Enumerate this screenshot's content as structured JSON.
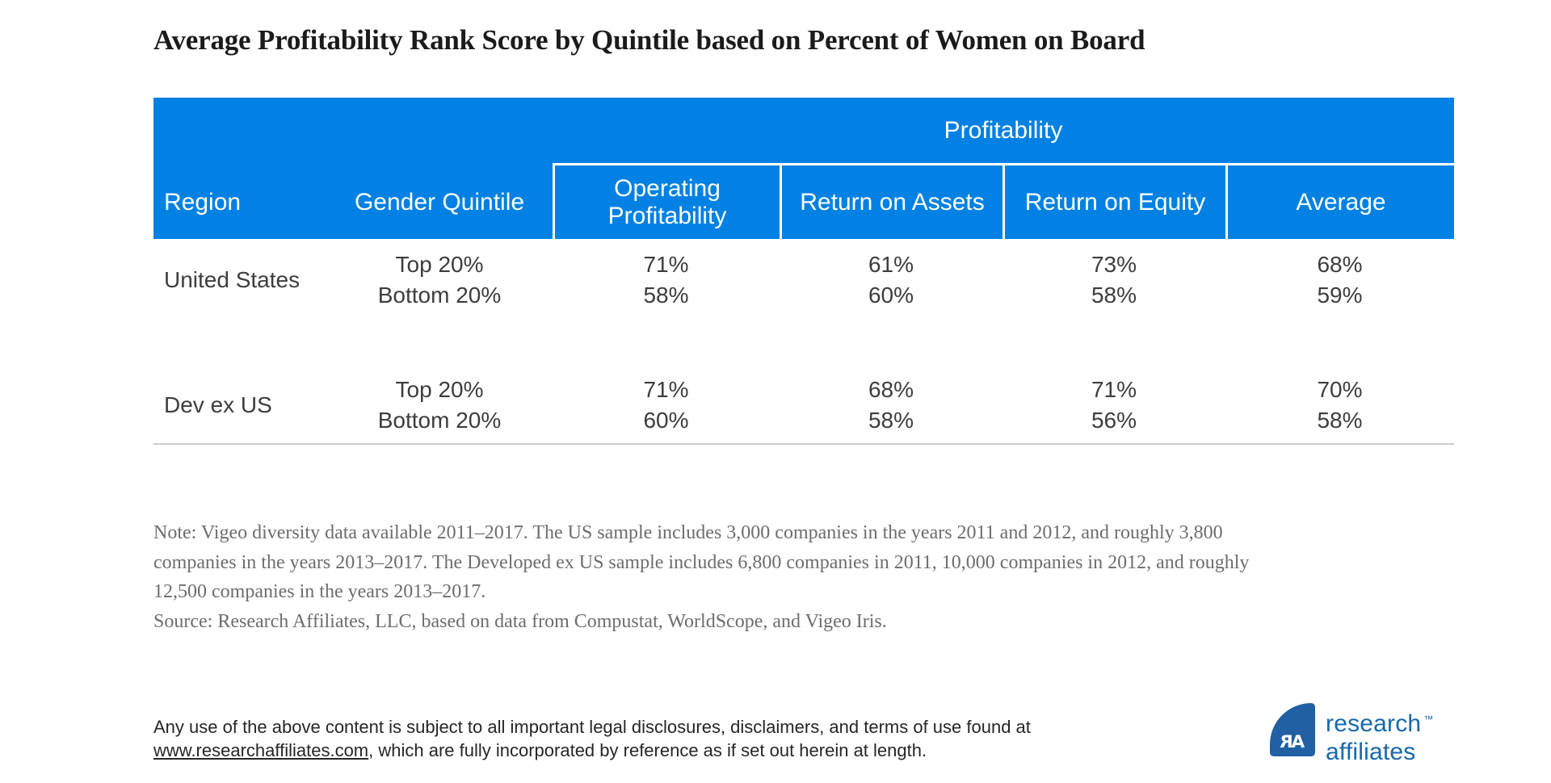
{
  "title": "Average Profitability Rank Score by Quintile based on Percent of Women on Board",
  "colors": {
    "header_blue": "#0081e3",
    "header_text": "#ffffff",
    "body_text": "#3d3d3d",
    "note_text": "#6d6d6d",
    "rule_gray": "#cccccc",
    "logo_mark_blue": "#2160a3",
    "logo_text_blue": "#1768ac"
  },
  "table": {
    "group_header": "Profitability",
    "columns": [
      "Region",
      "Gender Quintile",
      "Operating Profitability",
      "Return on Assets",
      "Return on Equity",
      "Average"
    ],
    "rows": [
      {
        "region": "United States",
        "lines": [
          {
            "quintile": "Top 20%",
            "values": [
              "71%",
              "61%",
              "73%",
              "68%"
            ]
          },
          {
            "quintile": "Bottom 20%",
            "values": [
              "58%",
              "60%",
              "58%",
              "59%"
            ]
          }
        ]
      },
      {
        "region": "Dev ex US",
        "lines": [
          {
            "quintile": "Top 20%",
            "values": [
              "71%",
              "68%",
              "71%",
              "70%"
            ]
          },
          {
            "quintile": "Bottom 20%",
            "values": [
              "60%",
              "58%",
              "56%",
              "58%"
            ]
          }
        ]
      }
    ]
  },
  "notes": {
    "lines": [
      "Note: Vigeo diversity data available 2011–2017. The US sample includes 3,000 companies in the years 2011 and 2012, and roughly 3,800",
      "companies in the years 2013–2017. The Developed ex US sample includes 6,800 companies in 2011, 10,000 companies in 2012, and roughly",
      "12,500 companies in the years 2013–2017.",
      "Source: Research Affiliates, LLC, based on data from Compustat, WorldScope, and Vigeo Iris."
    ]
  },
  "footer": {
    "line1": "Any use of the above content is subject to all important legal disclosures, disclaimers, and terms of use found at",
    "link": "www.researchaffiliates.com",
    "line2_rest": ", which are fully incorporated by reference as if set out herein at length."
  },
  "logo": {
    "monogram_left": "R",
    "monogram_right": "A",
    "word_line1": "research",
    "word_line2": "affiliates",
    "trademark": "™"
  },
  "chart_data": {
    "type": "table",
    "title": "Average Profitability Rank Score by Quintile based on Percent of Women on Board",
    "group_header": "Profitability (spans Operating Profitability, Return on Assets, Return on Equity, Average)",
    "columns": [
      "Region",
      "Gender Quintile",
      "Operating Profitability",
      "Return on Assets",
      "Return on Equity",
      "Average"
    ],
    "rows": [
      [
        "United States",
        "Top 20%",
        "71%",
        "61%",
        "73%",
        "68%"
      ],
      [
        "United States",
        "Bottom 20%",
        "58%",
        "60%",
        "58%",
        "59%"
      ],
      [
        "Dev ex US",
        "Top 20%",
        "71%",
        "68%",
        "71%",
        "70%"
      ],
      [
        "Dev ex US",
        "Bottom 20%",
        "60%",
        "58%",
        "56%",
        "58%"
      ]
    ]
  }
}
